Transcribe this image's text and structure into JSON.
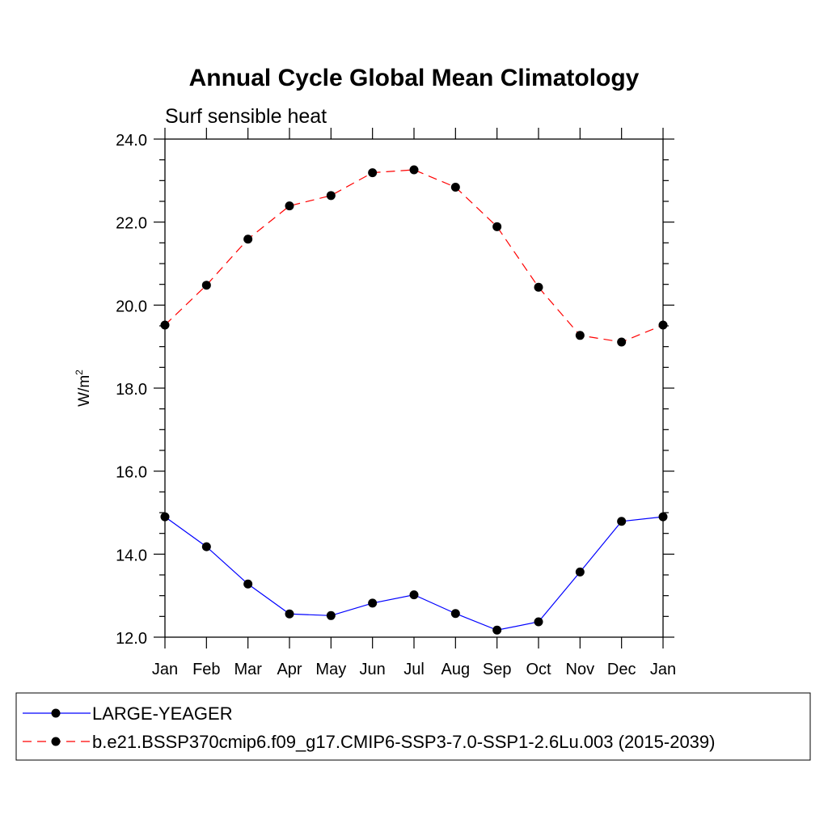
{
  "chart_data": {
    "type": "line",
    "title": "Annual Cycle Global Mean Climatology",
    "subtitle": "Surf sensible heat",
    "xlabel": "",
    "ylabel": "W/m",
    "ylabel_superscript": "2",
    "categories": [
      "Jan",
      "Feb",
      "Mar",
      "Apr",
      "May",
      "Jun",
      "Jul",
      "Aug",
      "Sep",
      "Oct",
      "Nov",
      "Dec",
      "Jan"
    ],
    "ylim": [
      12.0,
      24.0
    ],
    "yticks": [
      "12.0",
      "14.0",
      "16.0",
      "18.0",
      "20.0",
      "22.0",
      "24.0"
    ],
    "grid": false,
    "legend_position": "bottom",
    "series": [
      {
        "name": "LARGE-YEAGER",
        "color": "#0000ff",
        "line_style": "solid",
        "marker": "filled-circle",
        "values": [
          14.9,
          14.18,
          13.28,
          12.56,
          12.52,
          12.82,
          13.02,
          12.57,
          12.17,
          12.37,
          13.57,
          14.79,
          14.9
        ]
      },
      {
        "name": "b.e21.BSSP370cmip6.f09_g17.CMIP6-SSP3-7.0-SSP1-2.6Lu.003 (2015-2039)",
        "color": "#ff0000",
        "line_style": "dashed",
        "marker": "filled-circle",
        "values": [
          19.52,
          20.48,
          21.59,
          22.39,
          22.64,
          23.19,
          23.26,
          22.84,
          21.89,
          20.43,
          19.27,
          19.11,
          19.52
        ]
      }
    ]
  }
}
